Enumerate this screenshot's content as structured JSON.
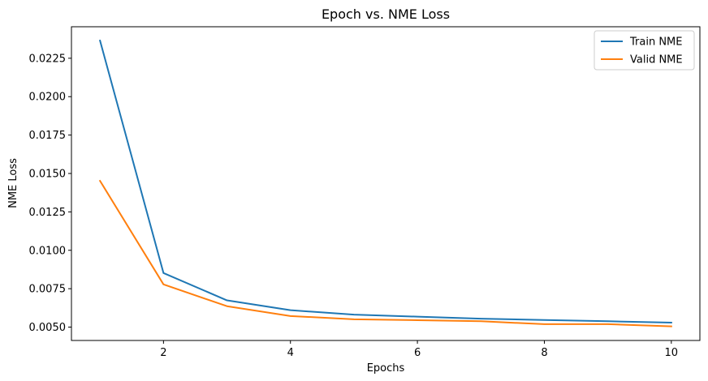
{
  "chart_data": {
    "type": "line",
    "title": "Epoch vs. NME Loss",
    "xlabel": "Epochs",
    "ylabel": "NME Loss",
    "x": [
      1,
      2,
      3,
      4,
      5,
      6,
      7,
      8,
      9,
      10
    ],
    "xlim": [
      0.55,
      10.45
    ],
    "ylim": [
      0.00413,
      0.02455
    ],
    "xticks": [
      2,
      4,
      6,
      8,
      10
    ],
    "yticks": [
      0.005,
      0.0075,
      0.01,
      0.0125,
      0.015,
      0.0175,
      0.02,
      0.0225
    ],
    "xtick_labels": [
      "2",
      "4",
      "6",
      "8",
      "10"
    ],
    "ytick_labels": [
      "0.0050",
      "0.0075",
      "0.0100",
      "0.0125",
      "0.0150",
      "0.0175",
      "0.0200",
      "0.0225"
    ],
    "grid": false,
    "legend_position": "top-right",
    "series": [
      {
        "name": "Train NME",
        "color": "#1f77b4",
        "values": [
          0.02365,
          0.00852,
          0.00674,
          0.0061,
          0.00581,
          0.00568,
          0.00555,
          0.00546,
          0.00538,
          0.00529
        ]
      },
      {
        "name": "Valid NME",
        "color": "#ff7f0e",
        "values": [
          0.01452,
          0.00778,
          0.00636,
          0.00572,
          0.00551,
          0.00545,
          0.00538,
          0.00519,
          0.00519,
          0.00505
        ]
      }
    ]
  }
}
